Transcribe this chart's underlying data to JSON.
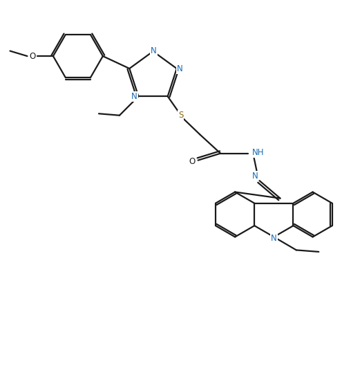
{
  "background_color": "#ffffff",
  "bond_color": "#1a1a1a",
  "label_N_color": "#1a6bb5",
  "label_S_color": "#8b6914",
  "label_O_color": "#1a1a1a",
  "linewidth": 1.6,
  "figsize": [
    5.08,
    5.55
  ],
  "dpi": 100,
  "xlim": [
    0,
    10
  ],
  "ylim": [
    0,
    11
  ]
}
